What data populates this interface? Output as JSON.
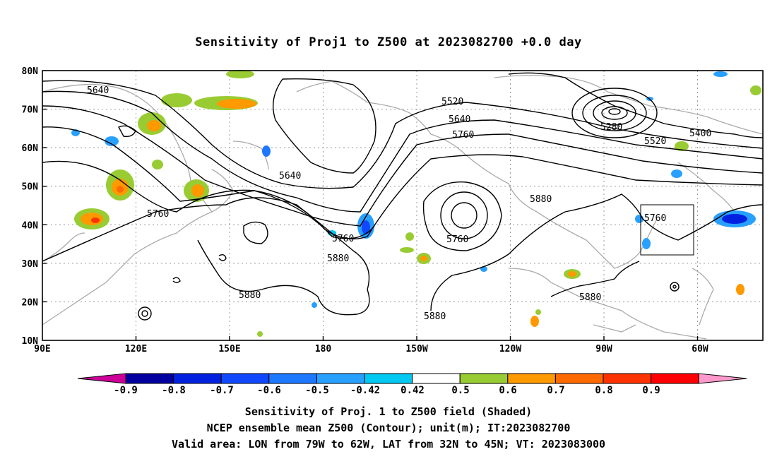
{
  "title": "Sensitivity of Proj1 to Z500 at 2023082700 +0.0 day",
  "lat_labels": [
    "80N",
    "70N",
    "60N",
    "50N",
    "40N",
    "30N",
    "20N",
    "10N"
  ],
  "lon_labels": [
    "90E",
    "120E",
    "150E",
    "180",
    "150W",
    "120W",
    "90W",
    "60W"
  ],
  "contour_labels": [
    "5640",
    "5520",
    "5640",
    "5760",
    "5280",
    "5400",
    "5520",
    "5640",
    "5760",
    "5760",
    "5760",
    "5880",
    "5880",
    "5880",
    "5880",
    "5760",
    "5880"
  ],
  "colorbar": {
    "labels": [
      "-0.9",
      "-0.8",
      "-0.7",
      "-0.6",
      "-0.5",
      "-0.42",
      "0.42",
      "0.5",
      "0.6",
      "0.7",
      "0.8",
      "0.9"
    ],
    "colors": [
      "#cc0099",
      "#0000a0",
      "#0022e0",
      "#1048ff",
      "#1e78ff",
      "#28a0ff",
      "#00c8f0",
      "#ffffff",
      "#99cc33",
      "#ff9900",
      "#ff6a00",
      "#ff3300",
      "#ff0000",
      "#ff99cc"
    ]
  },
  "valid_box": {
    "lon_from": "79W",
    "lon_to": "62W",
    "lat_from": "32N",
    "lat_to": "45N"
  },
  "captions": [
    "Sensitivity of Proj. 1 to Z500 field (Shaded)",
    "NCEP ensemble mean Z500 (Contour); unit(m); IT:2023082700",
    "Valid area: LON from 79W to 62W, LAT from 32N to 45N; VT: 2023083000"
  ]
}
